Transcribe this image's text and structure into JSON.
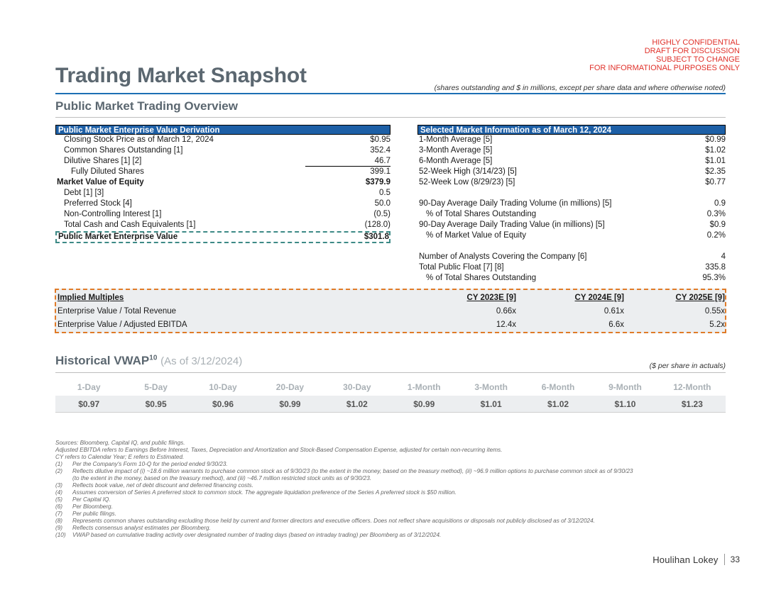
{
  "confidential": [
    "HIGHLY CONFIDENTIAL",
    "DRAFT FOR DISCUSSION",
    "SUBJECT TO CHANGE",
    "FOR INFORMATIONAL PURPOSES ONLY"
  ],
  "title": "Trading Market Snapshot",
  "units_note": "(shares outstanding and $ in millions, except per share data and where otherwise noted)",
  "section_title": "Public Market Trading Overview",
  "left_panel": {
    "header": "Public Market Enterprise Value Derivation",
    "rows": [
      {
        "label": "Closing Stock Price as of March 12, 2024",
        "value": "$0.95"
      },
      {
        "label": "Common Shares Outstanding [1]",
        "value": "352.4"
      },
      {
        "label": "Dilutive Shares [1] [2]",
        "value": "46.7"
      },
      {
        "label": "Fully Diluted Shares",
        "value": "399.1"
      },
      {
        "label": "Market Value of Equity",
        "value": "$379.9"
      },
      {
        "label": "Debt [1] [3]",
        "value": "0.5"
      },
      {
        "label": "Preferred Stock [4]",
        "value": "50.0"
      },
      {
        "label": "Non-Controlling Interest [1]",
        "value": "(0.5)"
      },
      {
        "label": "Total Cash and Cash Equivalents [1]",
        "value": "(128.0)"
      }
    ],
    "total": {
      "label": "Public Market Enterprise Value",
      "value": "$301.8"
    }
  },
  "right_panel": {
    "header": "Selected Market Information as of March 12, 2024",
    "rows": [
      {
        "label": "1-Month Average [5]",
        "value": "$0.99"
      },
      {
        "label": "3-Month Average [5]",
        "value": "$1.02"
      },
      {
        "label": "6-Month Average [5]",
        "value": "$1.01"
      },
      {
        "label": "52-Week High (3/14/23) [5]",
        "value": "$2.35"
      },
      {
        "label": "52-Week Low (8/29/23) [5]",
        "value": "$0.77"
      },
      {
        "label": "90-Day Average Daily Trading Volume (in millions) [5]",
        "value": "0.9"
      },
      {
        "label": "% of Total Shares Outstanding",
        "value": "0.3%"
      },
      {
        "label": "90-Day Average Daily Trading Value (in millions) [5]",
        "value": "$0.9"
      },
      {
        "label": "% of Market Value of Equity",
        "value": "0.2%"
      },
      {
        "label": "Number of Analysts Covering the Company [6]",
        "value": "4"
      },
      {
        "label": "Total Public Float [7] [8]",
        "value": "335.8"
      },
      {
        "label": "% of Total Shares Outstanding",
        "value": "95.3%"
      }
    ]
  },
  "multiples": {
    "header_label": "Implied Multiples",
    "columns": [
      "CY 2023E [9]",
      "CY 2024E [9]",
      "CY 2025E [9]"
    ],
    "rows": [
      {
        "label": "Enterprise Value / Total Revenue",
        "values": [
          "0.66x",
          "0.61x",
          "0.55x"
        ]
      },
      {
        "label": "Enterprise Value / Adjusted EBITDA",
        "values": [
          "12.4x",
          "6.6x",
          "5.2x"
        ]
      }
    ]
  },
  "vwap": {
    "title": "Historical VWAP",
    "sup": "10",
    "as_of": "(As of 3/12/2024)",
    "note": "($ per share in actuals)",
    "periods": [
      "1-Day",
      "5-Day",
      "10-Day",
      "20-Day",
      "30-Day",
      "1-Month",
      "3-Month",
      "6-Month",
      "9-Month",
      "12-Month"
    ],
    "values": [
      "$0.97",
      "$0.95",
      "$0.96",
      "$0.99",
      "$1.02",
      "$0.99",
      "$1.01",
      "$1.02",
      "$1.10",
      "$1.23"
    ]
  },
  "footnotes": {
    "intro": [
      "Sources: Bloomberg, Capital IQ, and public filings.",
      "Adjusted EBITDA refers to Earnings Before Interest, Taxes, Depreciation and Amortization and Stock-Based Compensation Expense, adjusted for certain non-recurring items.",
      "CY refers to Calendar Year; E refers to Estimated."
    ],
    "notes": [
      {
        "num": "(1)",
        "text": "Per the Company's Form 10-Q for the period ended 9/30/23."
      },
      {
        "num": "(2)",
        "text": "Reflects dilutive impact of (i) ~18.6 million warrants to purchase common stock as of 9/30/23 (to the extent in the money, based on the treasury method), (ii) ~96.9 million options to purchase common stock as of 9/30/23 (to the extent in the money, based on the treasury method), and (iii) ~46.7 million restricted stock units as of 9/30/23."
      },
      {
        "num": "(3)",
        "text": "Reflects book value, net of debt discount and deferred financing costs."
      },
      {
        "num": "(4)",
        "text": "Assumes conversion of Series A preferred stock to common stock. The aggregate liquidation preference of the Series A preferred stock is $50 million."
      },
      {
        "num": "(5)",
        "text": "Per Capital IQ."
      },
      {
        "num": "(6)",
        "text": "Per Bloomberg."
      },
      {
        "num": "(7)",
        "text": "Per public filings."
      },
      {
        "num": "(8)",
        "text": "Represents common shares outstanding excluding those held by current and former directors and executive officers. Does not reflect share acquisitions or disposals not publicly disclosed as of 3/12/2024."
      },
      {
        "num": "(9)",
        "text": "Reflects consensus analyst estimates per Bloomberg."
      },
      {
        "num": "(10)",
        "text": "VWAP based on cumulative trading activity over designated number of trading days (based on intraday trading) per Bloomberg as of 3/12/2024."
      }
    ]
  },
  "brand": {
    "name": "Houlihan Lokey",
    "page": "33"
  }
}
